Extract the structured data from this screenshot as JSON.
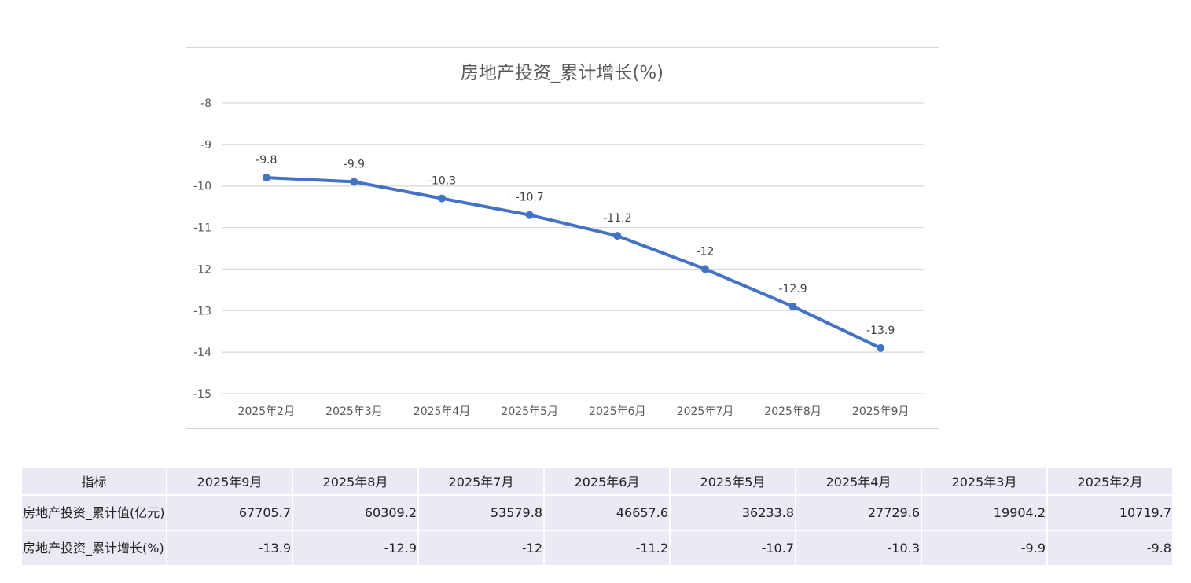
{
  "chart_data": {
    "type": "line",
    "title": "房地产投资_累计增长(%)",
    "categories": [
      "2025年2月",
      "2025年3月",
      "2025年4月",
      "2025年5月",
      "2025年6月",
      "2025年7月",
      "2025年8月",
      "2025年9月"
    ],
    "series": [
      {
        "values": [
          -9.8,
          -9.9,
          -10.3,
          -10.7,
          -11.2,
          -12,
          -12.9,
          -13.9
        ]
      }
    ],
    "data_labels": [
      "-9.8",
      "-9.9",
      "-10.3",
      "-10.7",
      "-11.2",
      "-12",
      "-12.9",
      "-13.9"
    ],
    "yticks": [
      "-8",
      "-9",
      "-10",
      "-11",
      "-12",
      "-13",
      "-14",
      "-15"
    ],
    "ylim": [
      -15,
      -8
    ],
    "grid": true,
    "line_color": "#4472c4",
    "grid_color": "#d9d9d9"
  },
  "table": {
    "header": [
      "指标",
      "2025年9月",
      "2025年8月",
      "2025年7月",
      "2025年6月",
      "2025年5月",
      "2025年4月",
      "2025年3月",
      "2025年2月"
    ],
    "rows": [
      {
        "label": "房地产投资_累计值(亿元)",
        "values": [
          "67705.7",
          "60309.2",
          "53579.8",
          "46657.6",
          "36233.8",
          "27729.6",
          "19904.2",
          "10719.7"
        ]
      },
      {
        "label": "房地产投资_累计增长(%)",
        "values": [
          "-13.9",
          "-12.9",
          "-12",
          "-11.2",
          "-10.7",
          "-10.3",
          "-9.9",
          "-9.8"
        ]
      }
    ]
  }
}
